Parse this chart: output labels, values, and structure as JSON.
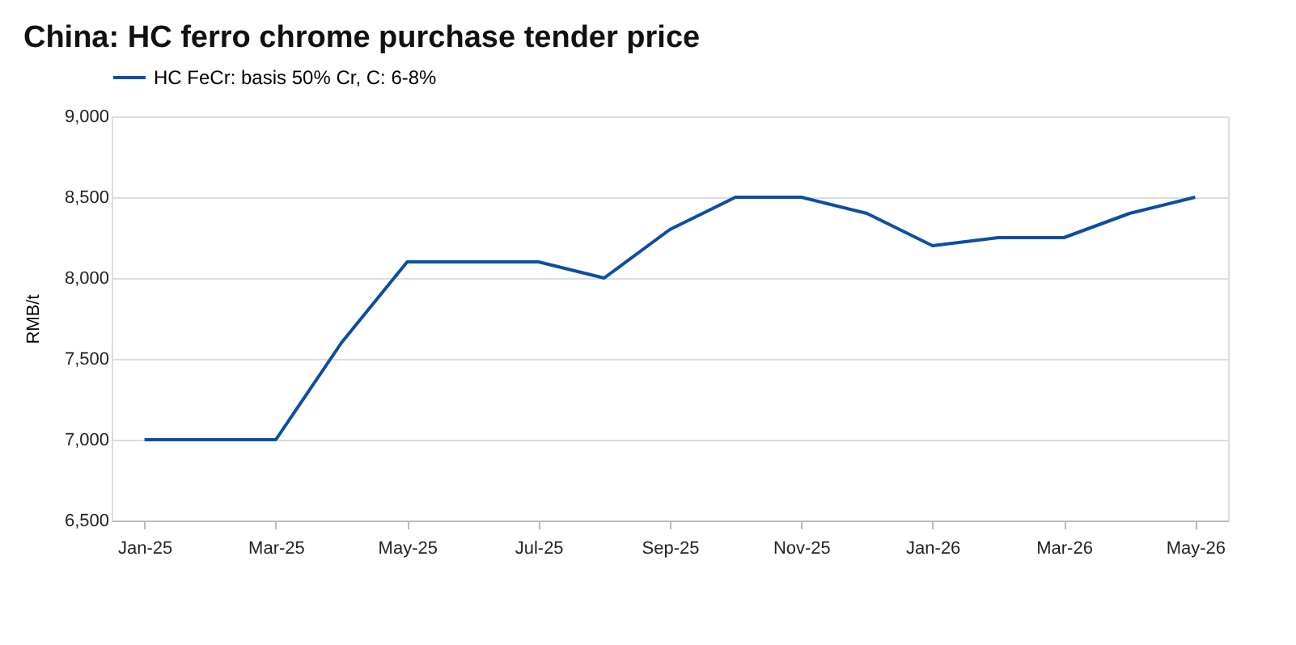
{
  "chart_data": {
    "type": "line",
    "title": "China: HC ferro chrome purchase tender price",
    "ylabel": "RMB/t",
    "categories": [
      "Jan-25",
      null,
      "Mar-25",
      null,
      "May-25",
      null,
      "Jul-25",
      null,
      "Sep-25",
      null,
      "Nov-25",
      null,
      "Jan-26",
      null,
      "Mar-26",
      null,
      "May-26"
    ],
    "series": [
      {
        "name": "HC FeCr: basis 50% Cr, C: 6-8%",
        "color": "#0b4ea2",
        "values": [
          7000,
          7000,
          7000,
          7600,
          8100,
          8100,
          8100,
          8000,
          8300,
          8500,
          8500,
          8400,
          8200,
          8250,
          8250,
          8400,
          8500
        ]
      }
    ],
    "ylim": [
      6500,
      9000
    ],
    "yticks": [
      {
        "value": 6500,
        "label": "6,500"
      },
      {
        "value": 7000,
        "label": "7,000"
      },
      {
        "value": 7500,
        "label": "7,500"
      },
      {
        "value": 8000,
        "label": "8,000"
      },
      {
        "value": 8500,
        "label": "8,500"
      },
      {
        "value": 9000,
        "label": "9,000"
      }
    ],
    "grid": "y",
    "legend": "top left",
    "marker": "none",
    "line_style": "solid"
  }
}
